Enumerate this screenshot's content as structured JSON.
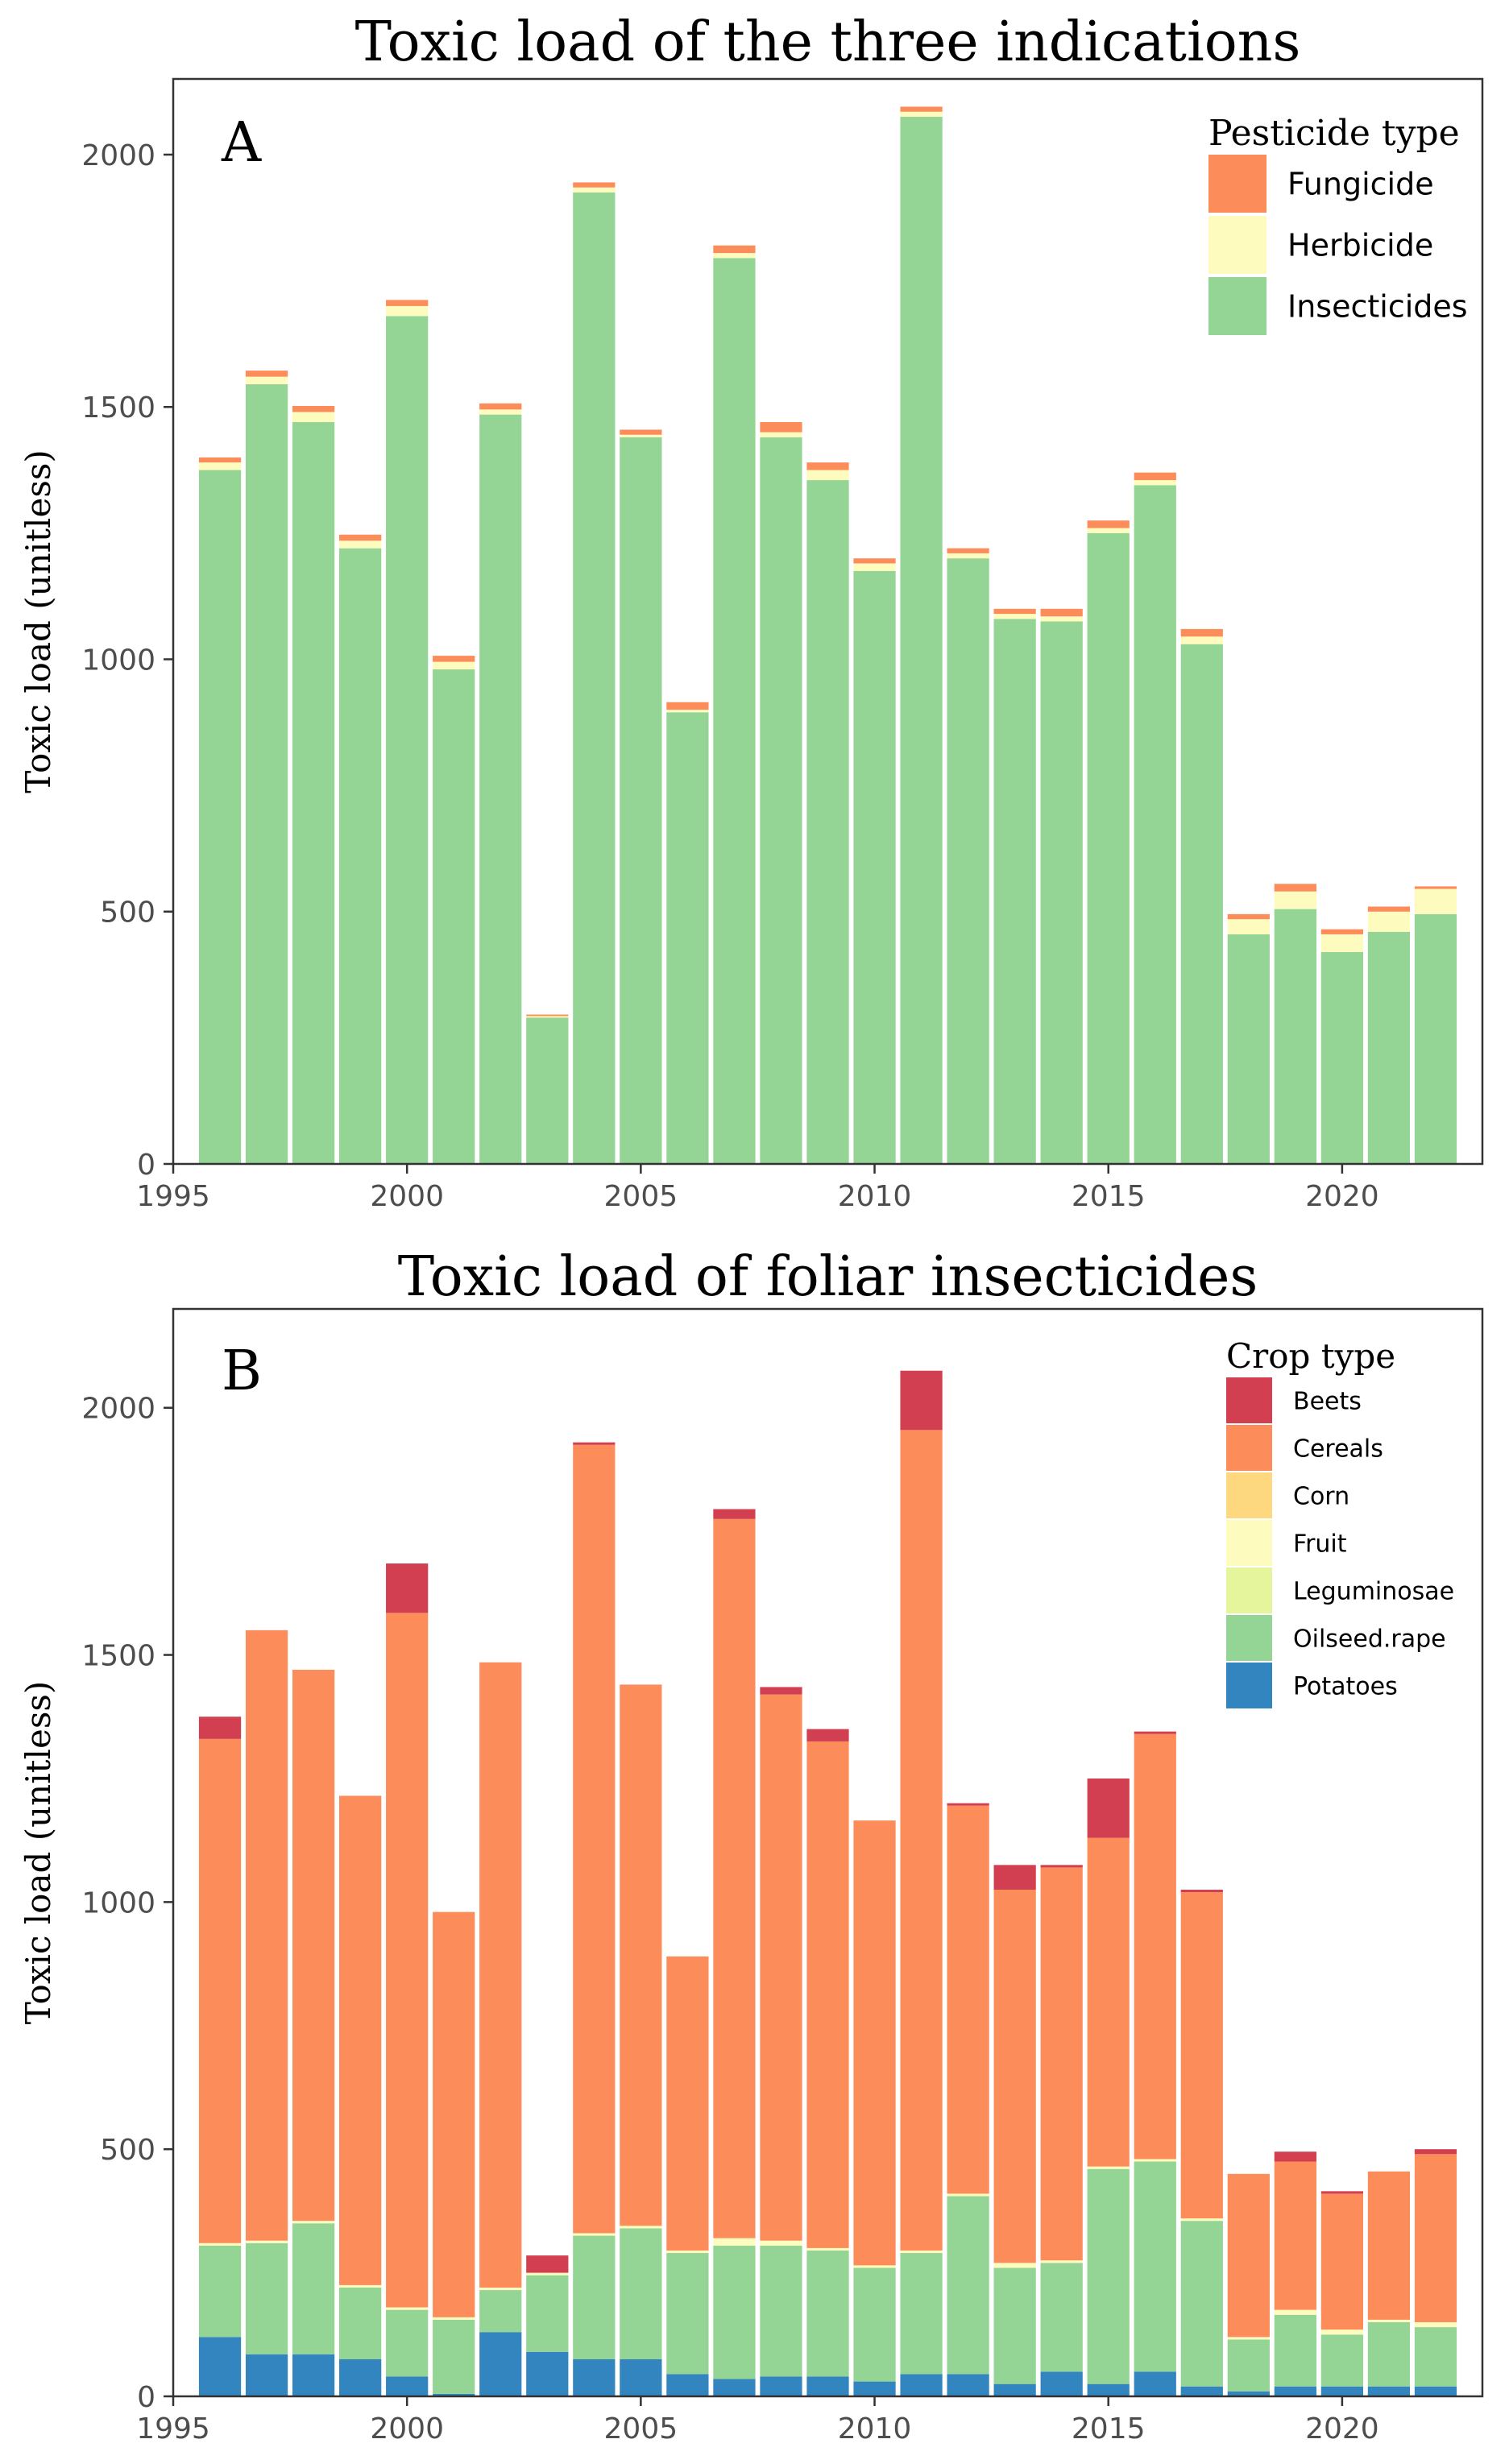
{
  "chart_data": [
    {
      "type": "bar",
      "stacked": true,
      "title": "Toxic load of the three indications",
      "panel_label": "A",
      "xlabel": "",
      "ylabel": "Toxic load (unitless)",
      "xlim": [
        1995,
        2023
      ],
      "ylim": [
        0,
        2150
      ],
      "x_ticks": [
        1995,
        2000,
        2005,
        2010,
        2015,
        2020
      ],
      "x_tick_labels": [
        "1995",
        "2000",
        "2005",
        "2010",
        "2015",
        "2020"
      ],
      "y_ticks": [
        0,
        500,
        1000,
        1500,
        2000
      ],
      "y_tick_labels": [
        "0",
        "500",
        "1000",
        "1500",
        "2000"
      ],
      "legend": {
        "title": "Pesticide type",
        "position": "top-right"
      },
      "x": [
        1996,
        1997,
        1998,
        1999,
        2000,
        2001,
        2002,
        2003,
        2004,
        2005,
        2006,
        2007,
        2008,
        2009,
        2010,
        2011,
        2012,
        2013,
        2014,
        2015,
        2016,
        2017,
        2018,
        2019,
        2020,
        2021,
        2022
      ],
      "series": [
        {
          "name": "Insecticides",
          "color": "#94d494",
          "values": [
            1375,
            1545,
            1470,
            1220,
            1680,
            980,
            1485,
            290,
            1925,
            1440,
            895,
            1795,
            1440,
            1355,
            1175,
            2075,
            1200,
            1080,
            1075,
            1250,
            1345,
            1030,
            455,
            505,
            420,
            460,
            495
          ]
        },
        {
          "name": "Herbicide",
          "color": "#fefbbe",
          "values": [
            15,
            15,
            20,
            15,
            20,
            15,
            10,
            3,
            10,
            5,
            5,
            10,
            10,
            20,
            15,
            10,
            10,
            10,
            10,
            10,
            10,
            15,
            30,
            35,
            35,
            40,
            50
          ]
        },
        {
          "name": "Fungicide",
          "color": "#fc8c5a",
          "values": [
            10,
            12,
            12,
            12,
            12,
            12,
            12,
            3,
            10,
            10,
            15,
            15,
            20,
            15,
            10,
            10,
            10,
            10,
            15,
            15,
            15,
            15,
            10,
            15,
            10,
            10,
            5
          ]
        }
      ]
    },
    {
      "type": "bar",
      "stacked": true,
      "title": "Toxic load of foliar insecticides",
      "panel_label": "B",
      "xlabel": "",
      "ylabel": "Toxic load (unitless)",
      "xlim": [
        1995,
        2023
      ],
      "ylim": [
        0,
        2200
      ],
      "x_ticks": [
        1995,
        2000,
        2005,
        2010,
        2015,
        2020
      ],
      "x_tick_labels": [
        "1995",
        "2000",
        "2005",
        "2010",
        "2015",
        "2020"
      ],
      "y_ticks": [
        0,
        500,
        1000,
        1500,
        2000
      ],
      "y_tick_labels": [
        "0",
        "500",
        "1000",
        "1500",
        "2000"
      ],
      "legend": {
        "title": "Crop type",
        "position": "top-right"
      },
      "x": [
        1996,
        1997,
        1998,
        1999,
        2000,
        2001,
        2002,
        2003,
        2004,
        2005,
        2006,
        2007,
        2008,
        2009,
        2010,
        2011,
        2012,
        2013,
        2014,
        2015,
        2016,
        2017,
        2018,
        2019,
        2020,
        2021,
        2022
      ],
      "series": [
        {
          "name": "Potatoes",
          "color": "#3285bf",
          "values": [
            120,
            85,
            85,
            75,
            40,
            5,
            130,
            90,
            75,
            75,
            45,
            35,
            40,
            40,
            30,
            45,
            45,
            25,
            50,
            25,
            50,
            20,
            10,
            20,
            20,
            20,
            20
          ]
        },
        {
          "name": "Oilseed.rape",
          "color": "#94d494",
          "values": [
            185,
            225,
            265,
            145,
            135,
            150,
            85,
            155,
            250,
            265,
            245,
            270,
            265,
            255,
            230,
            245,
            360,
            235,
            220,
            435,
            425,
            335,
            105,
            145,
            105,
            130,
            120
          ]
        },
        {
          "name": "Leguminosae",
          "color": "#e4f59c",
          "values": [
            0,
            0,
            0,
            0,
            0,
            0,
            0,
            0,
            0,
            0,
            0,
            0,
            0,
            0,
            0,
            0,
            0,
            0,
            0,
            0,
            0,
            0,
            0,
            0,
            0,
            0,
            0
          ]
        },
        {
          "name": "Fruit",
          "color": "#fefbbe",
          "values": [
            5,
            5,
            5,
            5,
            5,
            5,
            5,
            5,
            5,
            5,
            5,
            15,
            10,
            5,
            5,
            5,
            5,
            10,
            5,
            5,
            5,
            5,
            5,
            10,
            10,
            5,
            10
          ]
        },
        {
          "name": "Corn",
          "color": "#fdd87e",
          "values": [
            0,
            0,
            0,
            0,
            0,
            0,
            0,
            0,
            0,
            0,
            0,
            0,
            0,
            0,
            0,
            0,
            0,
            0,
            0,
            0,
            0,
            0,
            0,
            0,
            0,
            0,
            0
          ]
        },
        {
          "name": "Cereals",
          "color": "#fc8c5a",
          "values": [
            1020,
            1235,
            1115,
            990,
            1405,
            820,
            1265,
            0,
            1595,
            1095,
            595,
            1455,
            1105,
            1025,
            900,
            1660,
            785,
            755,
            795,
            665,
            860,
            660,
            330,
            300,
            275,
            300,
            340
          ]
        },
        {
          "name": "Beets",
          "color": "#d13f50",
          "values": [
            45,
            0,
            0,
            0,
            100,
            0,
            0,
            35,
            5,
            0,
            0,
            20,
            15,
            25,
            0,
            120,
            5,
            50,
            5,
            120,
            5,
            5,
            0,
            20,
            5,
            0,
            10
          ]
        }
      ]
    }
  ]
}
